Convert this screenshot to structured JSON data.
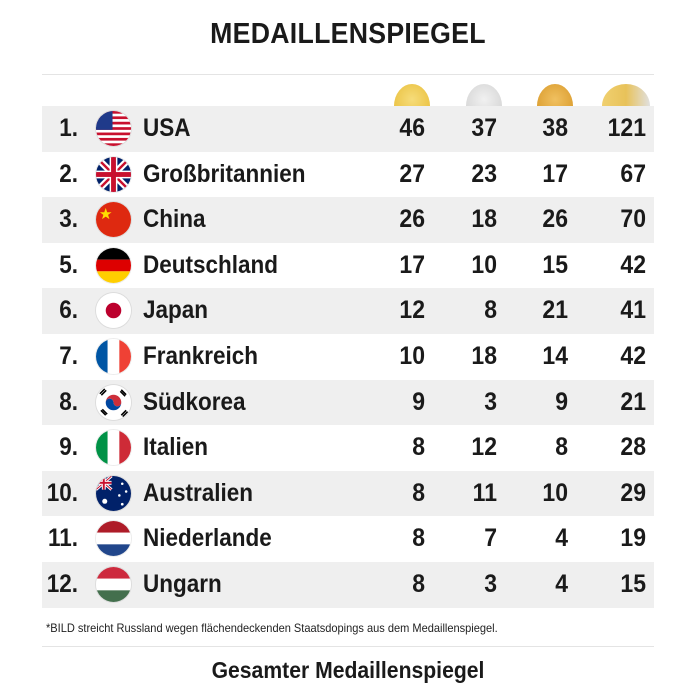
{
  "title": "MEDAILLENSPIEGEL",
  "medal_colors": {
    "gold": "#e9bf3c",
    "silver": "#d3d3d3",
    "bronze": "#d99a2b",
    "total": "#e8c25a"
  },
  "rows": [
    {
      "rank": "1.",
      "flag": "usa-flag-icon",
      "country": "USA",
      "gold": "46",
      "silver": "37",
      "bronze": "38",
      "total": "121"
    },
    {
      "rank": "2.",
      "flag": "uk-flag-icon",
      "country": "Großbritannien",
      "gold": "27",
      "silver": "23",
      "bronze": "17",
      "total": "67"
    },
    {
      "rank": "3.",
      "flag": "china-flag-icon",
      "country": "China",
      "gold": "26",
      "silver": "18",
      "bronze": "26",
      "total": "70"
    },
    {
      "rank": "5.",
      "flag": "germany-flag-icon",
      "country": "Deutschland",
      "gold": "17",
      "silver": "10",
      "bronze": "15",
      "total": "42"
    },
    {
      "rank": "6.",
      "flag": "japan-flag-icon",
      "country": "Japan",
      "gold": "12",
      "silver": "8",
      "bronze": "21",
      "total": "41"
    },
    {
      "rank": "7.",
      "flag": "france-flag-icon",
      "country": "Frankreich",
      "gold": "10",
      "silver": "18",
      "bronze": "14",
      "total": "42"
    },
    {
      "rank": "8.",
      "flag": "south-korea-flag-icon",
      "country": "Südkorea",
      "gold": "9",
      "silver": "3",
      "bronze": "9",
      "total": "21"
    },
    {
      "rank": "9.",
      "flag": "italy-flag-icon",
      "country": "Italien",
      "gold": "8",
      "silver": "12",
      "bronze": "8",
      "total": "28"
    },
    {
      "rank": "10.",
      "flag": "australia-flag-icon",
      "country": "Australien",
      "gold": "8",
      "silver": "11",
      "bronze": "10",
      "total": "29"
    },
    {
      "rank": "11.",
      "flag": "netherlands-flag-icon",
      "country": "Niederlande",
      "gold": "8",
      "silver": "7",
      "bronze": "4",
      "total": "19"
    },
    {
      "rank": "12.",
      "flag": "hungary-flag-icon",
      "country": "Ungarn",
      "gold": "8",
      "silver": "3",
      "bronze": "4",
      "total": "15"
    }
  ],
  "footnote": "*BILD streicht Russland wegen flächendeckenden Staatsdopings aus dem Medaillenspiegel.",
  "bottom_link": "Gesamter Medaillenspiegel"
}
